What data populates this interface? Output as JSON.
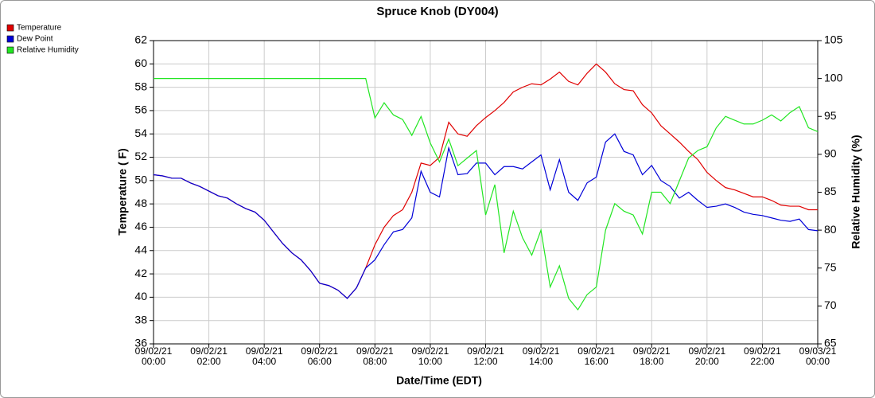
{
  "chart_data": {
    "type": "line",
    "title": "Spruce Knob (DY004)",
    "xlabel": "Date/Time (EDT)",
    "ylabel": "Temperature ( F)",
    "y2label": "Relative Humidity (%)",
    "x": [
      0,
      20,
      40,
      60,
      80,
      100,
      120,
      140,
      160,
      180,
      200,
      220,
      240,
      260,
      280,
      300,
      320,
      340,
      360,
      380,
      400,
      420,
      440,
      460,
      480,
      500,
      520,
      540,
      560,
      580,
      600,
      620,
      640,
      660,
      680,
      700,
      720,
      740,
      760,
      780,
      800,
      820,
      840,
      860,
      880,
      900,
      920,
      940,
      960,
      980,
      1000,
      1020,
      1040,
      1060,
      1080,
      1100,
      1120,
      1140,
      1160,
      1180,
      1200,
      1220,
      1240,
      1260,
      1280,
      1300,
      1320,
      1340,
      1360,
      1380,
      1400,
      1420,
      1440
    ],
    "xlim": [
      0,
      1440
    ],
    "xticks": [
      {
        "value": 0,
        "label": "09/02/21\n00:00"
      },
      {
        "value": 120,
        "label": "09/02/21\n02:00"
      },
      {
        "value": 240,
        "label": "09/02/21\n04:00"
      },
      {
        "value": 360,
        "label": "09/02/21\n06:00"
      },
      {
        "value": 480,
        "label": "09/02/21\n08:00"
      },
      {
        "value": 600,
        "label": "09/02/21\n10:00"
      },
      {
        "value": 720,
        "label": "09/02/21\n12:00"
      },
      {
        "value": 840,
        "label": "09/02/21\n14:00"
      },
      {
        "value": 960,
        "label": "09/02/21\n16:00"
      },
      {
        "value": 1080,
        "label": "09/02/21\n18:00"
      },
      {
        "value": 1200,
        "label": "09/02/21\n20:00"
      },
      {
        "value": 1320,
        "label": "09/02/21\n22:00"
      },
      {
        "value": 1440,
        "label": "09/03/21\n00:00"
      }
    ],
    "ylim": [
      36,
      62
    ],
    "yticks": [
      36,
      38,
      40,
      42,
      44,
      46,
      48,
      50,
      52,
      54,
      56,
      58,
      60,
      62
    ],
    "y2lim": [
      65,
      105
    ],
    "y2ticks": [
      65,
      70,
      75,
      80,
      85,
      90,
      95,
      100,
      105
    ],
    "grid": true,
    "legend": "top-left",
    "series": [
      {
        "name": "Temperature",
        "color": "#e00000",
        "values": [
          50.5,
          50.4,
          50.2,
          50.2,
          49.8,
          49.5,
          49.1,
          48.7,
          48.5,
          48.0,
          47.6,
          47.3,
          46.6,
          45.6,
          44.6,
          43.8,
          43.2,
          42.3,
          41.2,
          41.0,
          40.6,
          39.9,
          40.8,
          42.5,
          44.5,
          46.0,
          47.0,
          47.5,
          49.0,
          51.5,
          51.3,
          52.0,
          55.0,
          54.0,
          53.8,
          54.7,
          55.4,
          56.0,
          56.7,
          57.6,
          58.0,
          58.3,
          58.2,
          58.7,
          59.3,
          58.5,
          58.2,
          59.2,
          60.0,
          59.3,
          58.3,
          57.8,
          57.7,
          56.5,
          55.8,
          54.7,
          54.0,
          53.3,
          52.5,
          51.8,
          50.7,
          50.0,
          49.4,
          49.2,
          48.9,
          48.6,
          48.6,
          48.3,
          47.9,
          47.8,
          47.8,
          47.5,
          47.5
        ]
      },
      {
        "name": "Dew Point",
        "color": "#0000d8",
        "values": [
          50.5,
          50.4,
          50.2,
          50.2,
          49.8,
          49.5,
          49.1,
          48.7,
          48.5,
          48.0,
          47.6,
          47.3,
          46.6,
          45.6,
          44.6,
          43.8,
          43.2,
          42.3,
          41.2,
          41.0,
          40.6,
          39.9,
          40.8,
          42.5,
          43.2,
          44.5,
          45.6,
          45.8,
          46.8,
          50.8,
          49.0,
          48.6,
          52.8,
          50.5,
          50.6,
          51.5,
          51.5,
          50.5,
          51.2,
          51.2,
          51.0,
          51.6,
          52.2,
          49.2,
          51.8,
          49.0,
          48.3,
          49.8,
          50.3,
          53.3,
          54.0,
          52.5,
          52.2,
          50.5,
          51.3,
          50.0,
          49.5,
          48.5,
          49.0,
          48.3,
          47.7,
          47.8,
          48.0,
          47.7,
          47.3,
          47.1,
          47.0,
          46.8,
          46.6,
          46.5,
          46.7,
          45.8,
          45.7
        ]
      },
      {
        "name": "Relative Humidity",
        "color": "#22e622",
        "axis": "y2",
        "values": [
          100,
          100,
          100,
          100,
          100,
          100,
          100,
          100,
          100,
          100,
          100,
          100,
          100,
          100,
          100,
          100,
          100,
          100,
          100,
          100,
          100,
          100,
          100,
          100,
          94.8,
          96.8,
          95.2,
          94.6,
          92.5,
          95.0,
          91.5,
          89.0,
          92.0,
          88.5,
          89.5,
          90.5,
          82.0,
          86.0,
          77.0,
          82.5,
          79.0,
          76.7,
          80.0,
          72.5,
          75.3,
          71.0,
          69.5,
          71.5,
          72.5,
          80.0,
          83.5,
          82.5,
          82.0,
          79.5,
          85.0,
          85.0,
          83.5,
          86.5,
          89.5,
          90.5,
          91.0,
          93.5,
          95.0,
          94.5,
          94.0,
          94.0,
          94.5,
          95.2,
          94.4,
          95.5,
          96.3,
          93.5,
          93.0
        ]
      }
    ]
  }
}
